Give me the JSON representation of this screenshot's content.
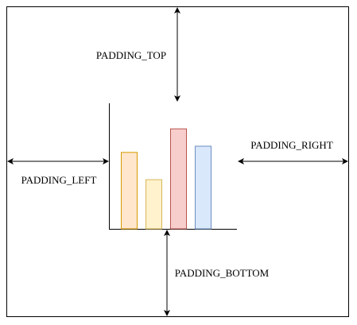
{
  "labels": {
    "padding_top": "PADDING_TOP",
    "padding_right": "PADDING_RIGHT",
    "padding_left": "PADDING_LEFT",
    "padding_bottom": "PADDING_BOTTOM"
  },
  "bars": [
    {
      "name": "bar-orange",
      "value": 0.62,
      "fill": "#ffe6cc",
      "stroke": "#d79b00"
    },
    {
      "name": "bar-yellow",
      "value": 0.4,
      "fill": "#fff2cc",
      "stroke": "#d6b656"
    },
    {
      "name": "bar-red",
      "value": 0.81,
      "fill": "#f8cecc",
      "stroke": "#b85450"
    },
    {
      "name": "bar-blue",
      "value": 0.67,
      "fill": "#dae8fc",
      "stroke": "#6c8ebf"
    }
  ],
  "colors": {
    "line": "#000000",
    "frame": "#000000"
  }
}
